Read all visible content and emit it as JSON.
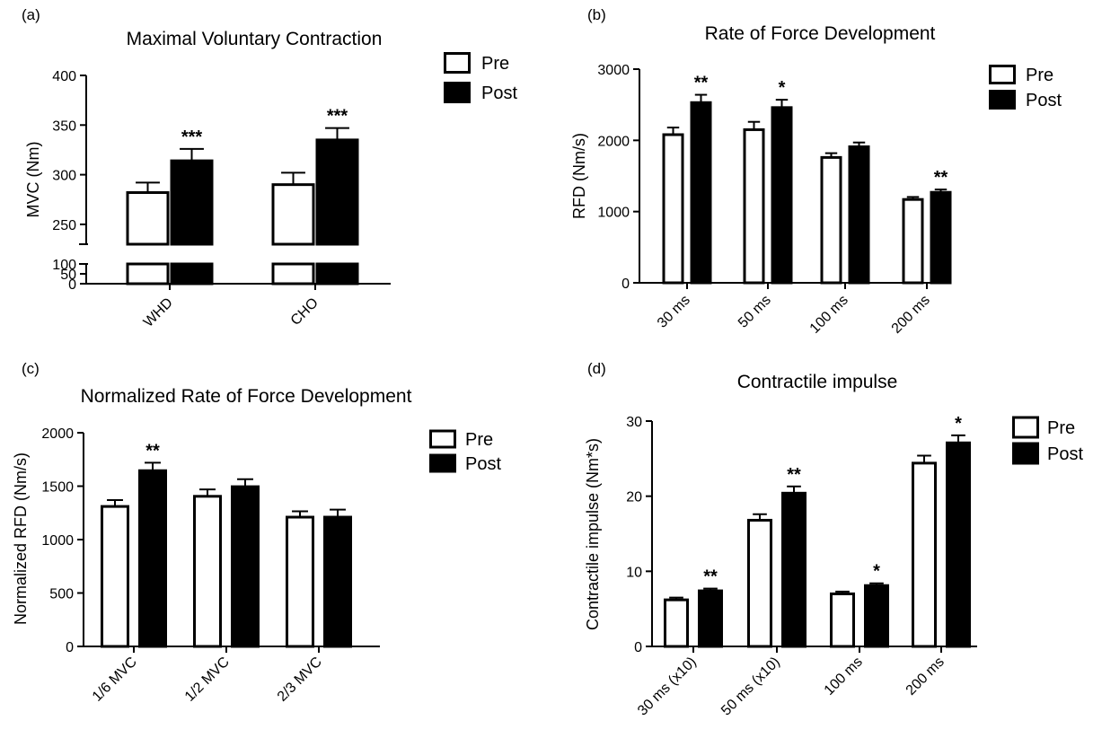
{
  "legend": {
    "pre": "Pre",
    "post": "Post"
  },
  "chart_data": [
    {
      "panel": "(a)",
      "type": "bar",
      "title": "Maximal Voluntary Contraction",
      "ylabel": "MVC (Nm)",
      "xlabel": "",
      "axis_break": true,
      "ylim": [
        0,
        400
      ],
      "yticks_lower": [
        0,
        50,
        100
      ],
      "yticks_upper": [
        250,
        300,
        350,
        400
      ],
      "categories": [
        "WHD",
        "CHO"
      ],
      "series": [
        {
          "name": "Pre",
          "values": [
            282,
            290
          ],
          "errors": [
            10,
            12
          ]
        },
        {
          "name": "Post",
          "values": [
            314,
            335
          ],
          "errors": [
            12,
            12
          ]
        }
      ],
      "annotations": [
        {
          "category": "WHD",
          "series": "Post",
          "text": "***"
        },
        {
          "category": "CHO",
          "series": "Post",
          "text": "***"
        }
      ],
      "grid": false,
      "legend_position": "top-right"
    },
    {
      "panel": "(b)",
      "type": "bar",
      "title": "Rate of Force Development",
      "ylabel": "RFD (Nm/s)",
      "xlabel": "",
      "ylim": [
        0,
        3000
      ],
      "yticks": [
        0,
        1000,
        2000,
        3000
      ],
      "categories": [
        "30 ms",
        "50 ms",
        "100 ms",
        "200 ms"
      ],
      "series": [
        {
          "name": "Pre",
          "values": [
            2080,
            2150,
            1760,
            1170
          ],
          "errors": [
            100,
            110,
            60,
            35
          ]
        },
        {
          "name": "Post",
          "values": [
            2530,
            2460,
            1910,
            1270
          ],
          "errors": [
            110,
            110,
            60,
            40
          ]
        }
      ],
      "annotations": [
        {
          "category": "30 ms",
          "series": "Post",
          "text": "**"
        },
        {
          "category": "50 ms",
          "series": "Post",
          "text": "*"
        },
        {
          "category": "200 ms",
          "series": "Post",
          "text": "**"
        }
      ],
      "grid": false,
      "legend_position": "top-right"
    },
    {
      "panel": "(c)",
      "type": "bar",
      "title": "Normalized Rate of Force Development",
      "ylabel": "Normalized RFD (Nm/s)",
      "xlabel": "",
      "ylim": [
        0,
        2000
      ],
      "yticks": [
        0,
        500,
        1000,
        1500,
        2000
      ],
      "categories": [
        "1/6 MVC",
        "1/2 MVC",
        "2/3 MVC"
      ],
      "series": [
        {
          "name": "Pre",
          "values": [
            1310,
            1405,
            1210
          ],
          "errors": [
            60,
            65,
            55
          ]
        },
        {
          "name": "Post",
          "values": [
            1645,
            1495,
            1210
          ],
          "errors": [
            75,
            70,
            70
          ]
        }
      ],
      "annotations": [
        {
          "category": "1/6 MVC",
          "series": "Post",
          "text": "**"
        }
      ],
      "grid": false,
      "legend_position": "top-right"
    },
    {
      "panel": "(d)",
      "type": "bar",
      "title": "Contractile impulse",
      "ylabel": "Contractile impulse (Nm*s)",
      "xlabel": "",
      "ylim": [
        0,
        30
      ],
      "yticks": [
        0,
        10,
        20,
        30
      ],
      "categories": [
        "30 ms (x10)",
        "50 ms (x10)",
        "100 ms",
        "200 ms"
      ],
      "series": [
        {
          "name": "Pre",
          "values": [
            6.2,
            16.8,
            7.0,
            24.4
          ],
          "errors": [
            0.3,
            0.8,
            0.3,
            1.0
          ]
        },
        {
          "name": "Post",
          "values": [
            7.4,
            20.4,
            8.1,
            27.1
          ],
          "errors": [
            0.3,
            0.9,
            0.3,
            1.0
          ]
        }
      ],
      "annotations": [
        {
          "category": "30 ms (x10)",
          "series": "Post",
          "text": "**"
        },
        {
          "category": "50 ms (x10)",
          "series": "Post",
          "text": "**"
        },
        {
          "category": "100 ms",
          "series": "Post",
          "text": "*"
        },
        {
          "category": "200 ms",
          "series": "Post",
          "text": "*"
        }
      ],
      "grid": false,
      "legend_position": "top-right"
    }
  ]
}
